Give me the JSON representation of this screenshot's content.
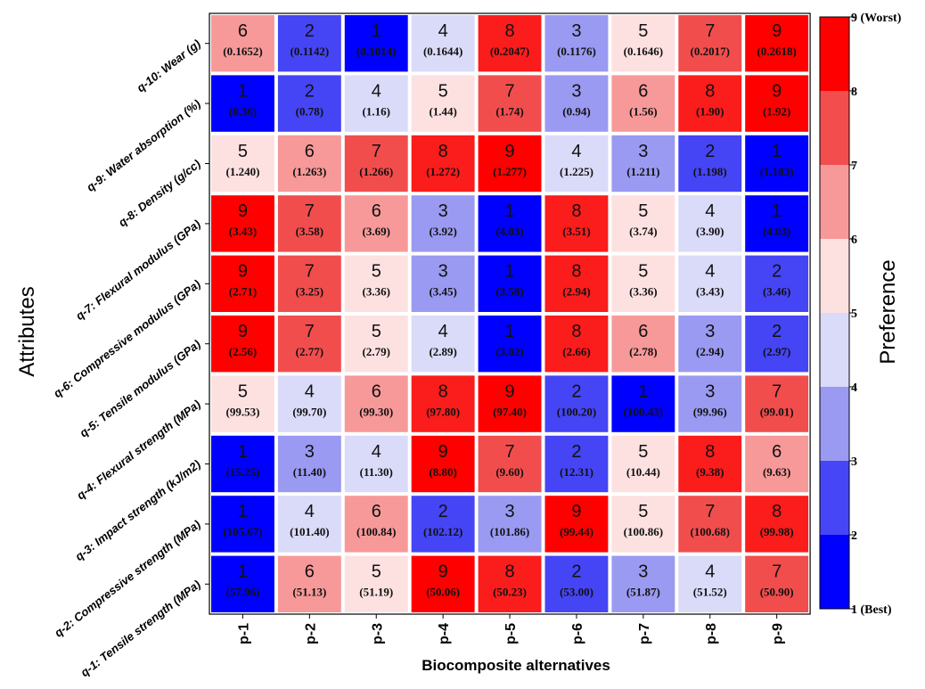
{
  "chart_data": {
    "type": "heatmap",
    "xlabel": "Biocomposite alternatives",
    "ylabel": "Attributes",
    "colorbar_title": "Preference",
    "colorbar_ticks": [
      "1 (Best)",
      "2",
      "3",
      "4",
      "5",
      "6",
      "7",
      "8",
      "9 (Worst)"
    ],
    "colorbar_range": [
      1,
      9
    ],
    "columns": [
      "p-1",
      "p-2",
      "p-3",
      "p-4",
      "p-5",
      "p-6",
      "p-7",
      "p-8",
      "p-9"
    ],
    "rows": [
      {
        "label": "q-10: Wear (g)",
        "ranks": [
          "6",
          "2",
          "1",
          "4",
          "8",
          "3",
          "5",
          "7",
          "9"
        ],
        "values": [
          "(0.1652)",
          "(0.1142)",
          "(0.1014)",
          "(0.1644)",
          "(0.2047)",
          "(0.1176)",
          "(0.1646)",
          "(0.2017)",
          "(0.2618)"
        ]
      },
      {
        "label": "q-9: Water absorption (%)",
        "ranks": [
          "1",
          "2",
          "4",
          "5",
          "7",
          "3",
          "6",
          "8",
          "9"
        ],
        "values": [
          "(0.36)",
          "(0.78)",
          "(1.16)",
          "(1.44)",
          "(1.74)",
          "(0.94)",
          "(1.56)",
          "(1.90)",
          "(1.92)"
        ]
      },
      {
        "label": "q-8: Density (g/cc)",
        "ranks": [
          "5",
          "6",
          "7",
          "8",
          "9",
          "4",
          "3",
          "2",
          "1"
        ],
        "values": [
          "(1.240)",
          "(1.263)",
          "(1.266)",
          "(1.272)",
          "(1.277)",
          "(1.225)",
          "(1.211)",
          "(1.198)",
          "(1.183)"
        ]
      },
      {
        "label": "q-7: Flexural modulus (GPa)",
        "ranks": [
          "9",
          "7",
          "6",
          "3",
          "1",
          "8",
          "5",
          "4",
          "1"
        ],
        "values": [
          "(3.43)",
          "(3.58)",
          "(3.69)",
          "(3.92)",
          "(4.03)",
          "(3.51)",
          "(3.74)",
          "(3.90)",
          "(4.03)"
        ]
      },
      {
        "label": "q-6: Compressive modulus (GPa)",
        "ranks": [
          "9",
          "7",
          "5",
          "3",
          "1",
          "8",
          "5",
          "4",
          "2"
        ],
        "values": [
          "(2.71)",
          "(3.25)",
          "(3.36)",
          "(3.45)",
          "(3.58)",
          "(2.94)",
          "(3.36)",
          "(3.43)",
          "(3.46)"
        ]
      },
      {
        "label": "q-5: Tensile modulus (GPa)",
        "ranks": [
          "9",
          "7",
          "5",
          "4",
          "1",
          "8",
          "6",
          "3",
          "2"
        ],
        "values": [
          "(2.56)",
          "(2.77)",
          "(2.79)",
          "(2.89)",
          "(3.02)",
          "(2.66)",
          "(2.78)",
          "(2.94)",
          "(2.97)"
        ]
      },
      {
        "label": "q-4: Flexural strength (MPa)",
        "ranks": [
          "5",
          "4",
          "6",
          "8",
          "9",
          "2",
          "1",
          "3",
          "7"
        ],
        "values": [
          "(99.53)",
          "(99.70)",
          "(99.30)",
          "(97.80)",
          "(97.40)",
          "(100.20)",
          "(100.43)",
          "(99.96)",
          "(99.01)"
        ]
      },
      {
        "label": "q-3: Impact strength (kJ/m2)",
        "ranks": [
          "1",
          "3",
          "4",
          "9",
          "7",
          "2",
          "5",
          "8",
          "6"
        ],
        "values": [
          "(15.25)",
          "(11.40)",
          "(11.30)",
          "(8.80)",
          "(9.60)",
          "(12.31)",
          "(10.44)",
          "(9.38)",
          "(9.63)"
        ]
      },
      {
        "label": "q-2: Compressive strength (MPa)",
        "ranks": [
          "1",
          "4",
          "6",
          "2",
          "3",
          "9",
          "5",
          "7",
          "8"
        ],
        "values": [
          "(105.67)",
          "(101.40)",
          "(100.84)",
          "(102.12)",
          "(101.86)",
          "(99.44)",
          "(100.86)",
          "(100.68)",
          "(99.98)"
        ]
      },
      {
        "label": "q-1: Tensile strength (MPa)",
        "ranks": [
          "1",
          "6",
          "5",
          "9",
          "8",
          "2",
          "3",
          "4",
          "7"
        ],
        "values": [
          "(57.96)",
          "(51.13)",
          "(51.19)",
          "(50.06)",
          "(50.23)",
          "(53.00)",
          "(51.87)",
          "(51.52)",
          "(50.90)"
        ]
      }
    ],
    "rank_colors": {
      "1": "#0000ff",
      "2": "#4545f5",
      "3": "#9a9af2",
      "4": "#dadaf9",
      "5": "#fde1e1",
      "6": "#f79999",
      "7": "#f24d4d",
      "8": "#fb1c1c",
      "9": "#ff0000"
    },
    "colorbar_colors": [
      "#0000ff",
      "#4646f6",
      "#9a9af2",
      "#dadaf9",
      "#fde1e1",
      "#f79999",
      "#f44d4d",
      "#ff0000"
    ]
  }
}
